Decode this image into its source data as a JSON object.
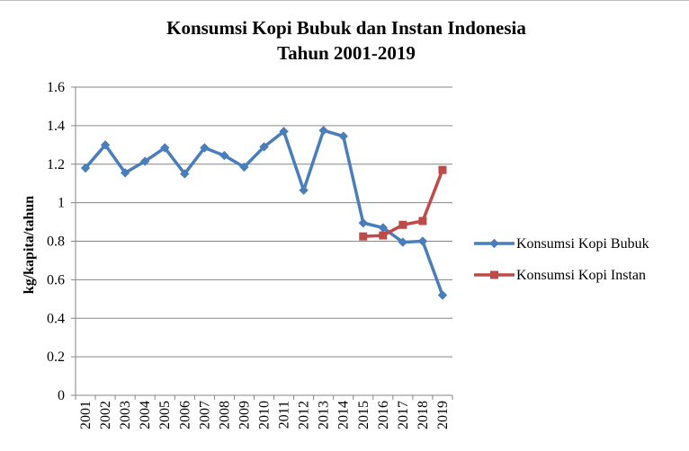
{
  "chart_data": {
    "type": "line",
    "title_line1": "Konsumsi Kopi Bubuk dan Instan Indonesia",
    "title_line2": "Tahun 2001-2019",
    "xlabel": "",
    "ylabel": "kg/kapita/tahun",
    "ylim": [
      0,
      1.6
    ],
    "yticks": [
      "0",
      "0.2",
      "0.4",
      "0.6",
      "0.8",
      "1",
      "1.2",
      "1.4",
      "1.6"
    ],
    "categories": [
      "2001",
      "2002",
      "2003",
      "2004",
      "2005",
      "2006",
      "2007",
      "2008",
      "2009",
      "2010",
      "2011",
      "2012",
      "2013",
      "2014",
      "2015",
      "2016",
      "2017",
      "2018",
      "2019"
    ],
    "grid": "horizontal",
    "legend_position": "right",
    "series": [
      {
        "name": "Konsumsi Kopi Bubuk",
        "color": "#4a7ebb",
        "marker": "diamond",
        "values": [
          1.18,
          1.3,
          1.155,
          1.215,
          1.285,
          1.15,
          1.285,
          1.245,
          1.185,
          1.29,
          1.37,
          1.065,
          1.375,
          1.345,
          0.895,
          0.87,
          0.795,
          0.8,
          0.52
        ]
      },
      {
        "name": "Konsumsi Kopi Instan",
        "color": "#be4b48",
        "marker": "square",
        "values": [
          null,
          null,
          null,
          null,
          null,
          null,
          null,
          null,
          null,
          null,
          null,
          null,
          null,
          null,
          0.825,
          0.83,
          0.885,
          0.905,
          1.17
        ]
      }
    ]
  }
}
